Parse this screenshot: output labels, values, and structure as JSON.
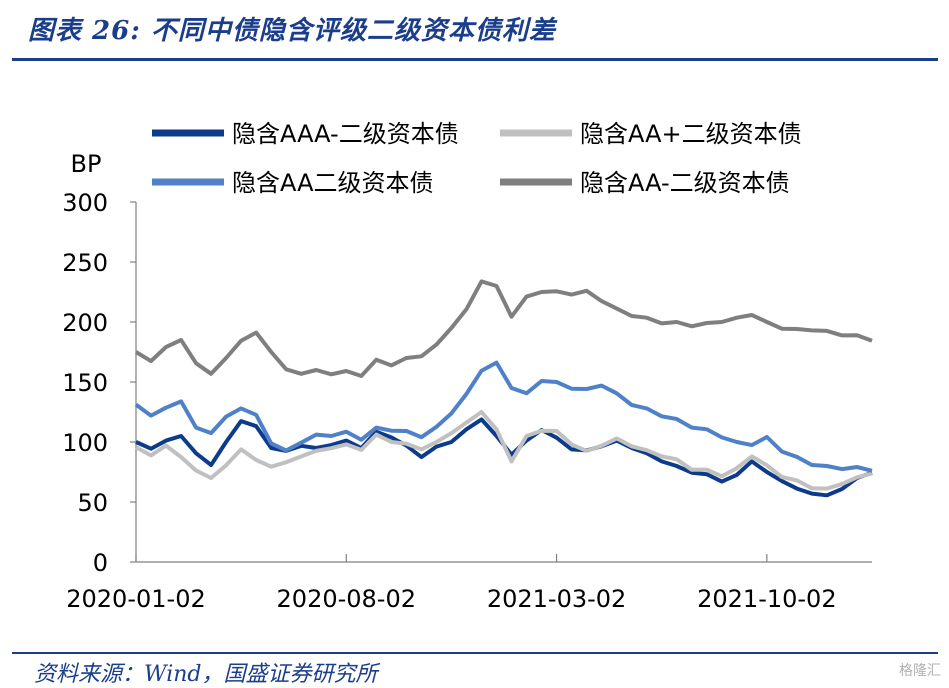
{
  "title": "图表 26:  不同中债隐含评级二级资本债利差",
  "source": "资料来源：Wind，国盛证券研究所",
  "watermark": "格隆汇",
  "chart_data": {
    "type": "line",
    "ylabel": "BP",
    "ylim": [
      0,
      300
    ],
    "yticks": [
      0,
      50,
      100,
      150,
      200,
      250,
      300
    ],
    "x_tick_labels": [
      "2020-01-02",
      "2020-08-02",
      "2021-03-02",
      "2021-10-02"
    ],
    "x_tick_positions_month_index": [
      0,
      7,
      14,
      21
    ],
    "x_range_month_index": [
      0,
      24.5
    ],
    "legend_position": "top",
    "series": [
      {
        "name": "隐含AAA-二级资本债",
        "color": "#0d3b8c",
        "x": [
          0,
          0.5,
          1,
          1.5,
          2,
          2.5,
          3,
          3.5,
          4,
          4.5,
          5,
          5.5,
          6,
          6.5,
          7,
          7.5,
          8,
          8.5,
          9,
          9.5,
          10,
          10.5,
          11,
          11.5,
          12,
          12.5,
          13,
          13.5,
          14,
          14.5,
          15,
          15.5,
          16,
          16.5,
          17,
          17.5,
          18,
          18.5,
          19,
          19.5,
          20,
          20.5,
          21,
          21.5,
          22,
          22.5,
          23,
          23.5,
          24,
          24.5
        ],
        "values": [
          100,
          95,
          100,
          105,
          90,
          82,
          100,
          118,
          112,
          95,
          92,
          98,
          95,
          98,
          100,
          95,
          108,
          105,
          97,
          88,
          95,
          100,
          110,
          120,
          105,
          90,
          100,
          110,
          103,
          95,
          93,
          97,
          100,
          95,
          90,
          85,
          80,
          75,
          72,
          67,
          72,
          85,
          75,
          68,
          60,
          57,
          55,
          62,
          70,
          75
        ]
      },
      {
        "name": "隐含AA+二级资本债",
        "color": "#c0c0c0",
        "x": [
          0,
          0.5,
          1,
          1.5,
          2,
          2.5,
          3,
          3.5,
          4,
          4.5,
          5,
          5.5,
          6,
          6.5,
          7,
          7.5,
          8,
          8.5,
          9,
          9.5,
          10,
          10.5,
          11,
          11.5,
          12,
          12.5,
          13,
          13.5,
          14,
          14.5,
          15,
          15.5,
          16,
          16.5,
          17,
          17.5,
          18,
          18.5,
          19,
          19.5,
          20,
          20.5,
          21,
          21.5,
          22,
          22.5,
          23,
          23.5,
          24,
          24.5
        ],
        "values": [
          95,
          90,
          97,
          88,
          75,
          70,
          80,
          95,
          85,
          80,
          82,
          88,
          92,
          96,
          98,
          94,
          105,
          100,
          98,
          95,
          100,
          108,
          115,
          125,
          110,
          85,
          105,
          110,
          108,
          98,
          92,
          98,
          103,
          97,
          92,
          88,
          85,
          78,
          77,
          72,
          77,
          88,
          80,
          72,
          68,
          62,
          60,
          65,
          70,
          75
        ]
      },
      {
        "name": "隐含AA二级资本债",
        "color": "#4f81c9",
        "x": [
          0,
          0.5,
          1,
          1.5,
          2,
          2.5,
          3,
          3.5,
          4,
          4.5,
          5,
          5.5,
          6,
          6.5,
          7,
          7.5,
          8,
          8.5,
          9,
          9.5,
          10,
          10.5,
          11,
          11.5,
          12,
          12.5,
          13,
          13.5,
          14,
          14.5,
          15,
          15.5,
          16,
          16.5,
          17,
          17.5,
          18,
          18.5,
          19,
          19.5,
          20,
          20.5,
          21,
          21.5,
          22,
          22.5,
          23,
          23.5,
          24,
          24.5
        ],
        "values": [
          130,
          122,
          128,
          135,
          112,
          108,
          120,
          128,
          122,
          100,
          93,
          100,
          105,
          105,
          108,
          103,
          112,
          110,
          108,
          104,
          112,
          125,
          140,
          160,
          165,
          145,
          140,
          152,
          150,
          145,
          143,
          147,
          140,
          132,
          128,
          122,
          118,
          112,
          110,
          105,
          100,
          98,
          103,
          92,
          87,
          82,
          80,
          78,
          78,
          76
        ]
      },
      {
        "name": "隐含AA-二级资本债",
        "color": "#7f7f7f",
        "x": [
          0,
          0.5,
          1,
          1.5,
          2,
          2.5,
          3,
          3.5,
          4,
          4.5,
          5,
          5.5,
          6,
          6.5,
          7,
          7.5,
          8,
          8.5,
          9,
          9.5,
          10,
          10.5,
          11,
          11.5,
          12,
          12.5,
          13,
          13.5,
          14,
          14.5,
          15,
          15.5,
          16,
          16.5,
          17,
          17.5,
          18,
          18.5,
          19,
          19.5,
          20,
          20.5,
          21,
          21.5,
          22,
          22.5,
          23,
          23.5,
          24,
          24.5
        ],
        "values": [
          175,
          168,
          178,
          185,
          165,
          158,
          170,
          185,
          190,
          175,
          160,
          158,
          160,
          157,
          158,
          155,
          168,
          165,
          170,
          172,
          180,
          195,
          210,
          235,
          230,
          205,
          220,
          225,
          225,
          224,
          226,
          218,
          210,
          205,
          203,
          200,
          200,
          197,
          198,
          200,
          203,
          207,
          200,
          195,
          193,
          193,
          192,
          190,
          189,
          185
        ]
      }
    ]
  }
}
